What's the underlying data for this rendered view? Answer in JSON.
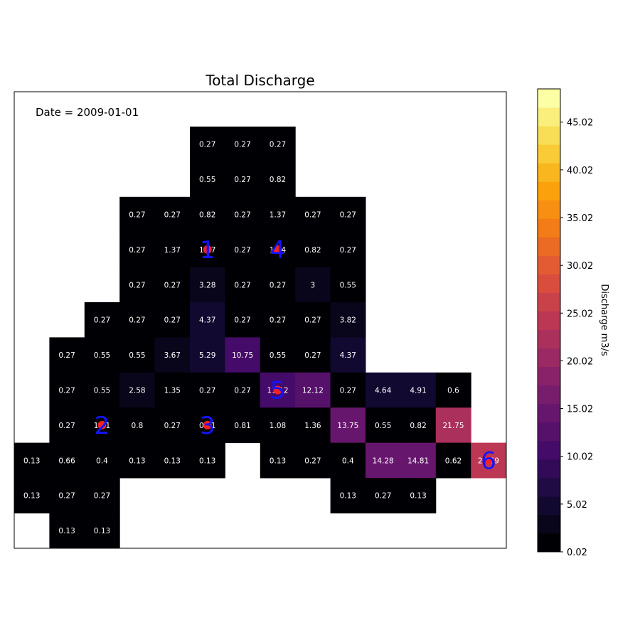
{
  "chart_data": {
    "type": "heatmap",
    "title": "Total Discharge",
    "annotation": "Date = 2009-01-01",
    "colorbar": {
      "label": "Discharge m3/s",
      "min": 0.02,
      "max": 48.5,
      "ticks": [
        0.02,
        5.02,
        10.02,
        15.02,
        20.02,
        25.02,
        30.02,
        35.02,
        40.02,
        45.02
      ],
      "tick_labels": [
        "0.02",
        "5.02",
        "10.02",
        "15.02",
        "20.02",
        "25.02",
        "30.02",
        "35.02",
        "40.02",
        "45.02"
      ],
      "colormap": "inferno",
      "levels": 25
    },
    "grid": [
      [
        null,
        null,
        null,
        null,
        null,
        0.27,
        0.27,
        0.27,
        null,
        null,
        null,
        null,
        null,
        null
      ],
      [
        null,
        null,
        null,
        null,
        null,
        0.55,
        0.27,
        0.82,
        null,
        null,
        null,
        null,
        null,
        null
      ],
      [
        null,
        null,
        null,
        0.27,
        0.27,
        0.82,
        0.27,
        1.37,
        0.27,
        0.27,
        null,
        null,
        null,
        null
      ],
      [
        null,
        null,
        null,
        0.27,
        1.37,
        1.37,
        0.27,
        1.64,
        0.82,
        0.27,
        null,
        null,
        null,
        null
      ],
      [
        null,
        null,
        null,
        0.27,
        0.27,
        3.28,
        0.27,
        0.27,
        3.0,
        0.55,
        null,
        null,
        null,
        null
      ],
      [
        null,
        null,
        0.27,
        0.27,
        0.27,
        4.37,
        0.27,
        0.27,
        0.27,
        3.82,
        null,
        null,
        null,
        null
      ],
      [
        null,
        0.27,
        0.55,
        0.55,
        3.67,
        5.29,
        10.75,
        0.55,
        0.27,
        4.37,
        null,
        null,
        null,
        null
      ],
      [
        null,
        0.27,
        0.55,
        2.58,
        1.35,
        0.27,
        0.27,
        11.12,
        12.12,
        0.27,
        4.64,
        4.91,
        0.6,
        null
      ],
      [
        null,
        0.27,
        1.21,
        0.8,
        0.27,
        0.81,
        0.81,
        1.08,
        1.36,
        13.75,
        0.55,
        0.82,
        21.75,
        null
      ],
      [
        0.13,
        0.66,
        0.4,
        0.13,
        0.13,
        0.13,
        null,
        0.13,
        0.27,
        0.4,
        14.28,
        14.81,
        0.62,
        23.59
      ],
      [
        0.13,
        0.27,
        0.27,
        null,
        null,
        null,
        null,
        null,
        null,
        0.13,
        0.27,
        0.13,
        null,
        null
      ],
      [
        null,
        0.13,
        0.13,
        null,
        null,
        null,
        null,
        null,
        null,
        null,
        null,
        null,
        null,
        null
      ]
    ],
    "stations": [
      {
        "label": "1",
        "row": 3,
        "col": 5
      },
      {
        "label": "2",
        "row": 8,
        "col": 2
      },
      {
        "label": "3",
        "row": 8,
        "col": 5
      },
      {
        "label": "4",
        "row": 3,
        "col": 7
      },
      {
        "label": "5",
        "row": 7,
        "col": 7
      },
      {
        "label": "6",
        "row": 9,
        "col": 13
      }
    ],
    "marker_color": "#ff2020",
    "label_color": "#1414ff"
  }
}
